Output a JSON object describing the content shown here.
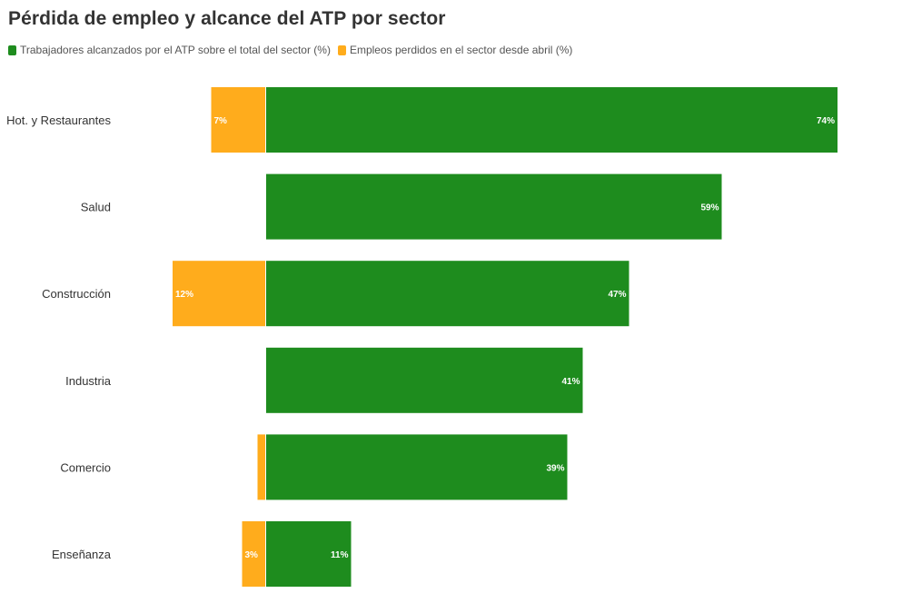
{
  "chart_data": {
    "type": "bar",
    "orientation": "horizontal",
    "title": "Pérdida de empleo y alcance del ATP por sector",
    "categories": [
      "Hot. y Restaurantes",
      "Salud",
      "Construcción",
      "Industria",
      "Comercio",
      "Enseñanza"
    ],
    "series": [
      {
        "name": "Trabajadores alcanzados por el ATP sobre el total del sector (%)",
        "color": "#1e8c1e",
        "direction": "right",
        "values": [
          74,
          59,
          47,
          41,
          39,
          11
        ],
        "labels": [
          "74%",
          "59%",
          "47%",
          "41%",
          "39%",
          "11%"
        ]
      },
      {
        "name": "Empleos perdidos en el sector desde abril (%)",
        "color": "#ffac1c",
        "direction": "left",
        "values": [
          7,
          0,
          12,
          0,
          1,
          3
        ],
        "labels": [
          "7%",
          "",
          "12%",
          "",
          "",
          "3%"
        ]
      }
    ]
  }
}
